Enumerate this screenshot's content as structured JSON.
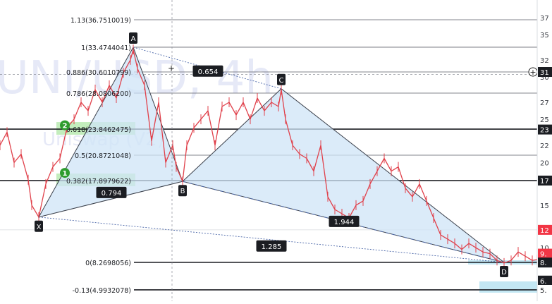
{
  "colors": {
    "background": "#ffffff",
    "candle": "#e0414b",
    "pattern_fill": "#cfe4f7",
    "pattern_stroke": "#3a3f4a",
    "watermark": "#e6e9f7",
    "level_green": "#b9eab1",
    "marker_green": "#2e9c2e",
    "price_red": "#f23645",
    "price_blue": "#bde4f2"
  },
  "watermark": {
    "symbol": "UNI/USD, 4h",
    "exchange": "Uniswap (V2)"
  },
  "pattern_points": [
    {
      "label": "X",
      "bar": 55,
      "price": 13.6
    },
    {
      "label": "A",
      "bar": 189,
      "price": 33.4744041
    },
    {
      "label": "B",
      "bar": 259,
      "price": 17.8
    },
    {
      "label": "C",
      "bar": 399,
      "price": 28.6
    },
    {
      "label": "D",
      "bar": 715,
      "price": 8.2698056
    }
  ],
  "ratios": [
    {
      "text": "0.654",
      "bar": 295,
      "price": 30.7
    },
    {
      "text": "0.794",
      "bar": 158,
      "price": 16.5
    },
    {
      "text": "1.944",
      "bar": 488,
      "price": 13.1
    },
    {
      "text": "1.285",
      "bar": 385,
      "price": 10.2
    }
  ],
  "fib_levels": [
    {
      "label": "1.13(36.7510019)",
      "price": 36.7510019
    },
    {
      "label": "1(33.4744041)",
      "price": 33.4744041
    },
    {
      "label": "0.886(30.6010799)",
      "price": 30.6010799
    },
    {
      "label": "0.786(28.0806200)",
      "price": 28.08062
    },
    {
      "label": "0.618(23.8462475)",
      "price": 23.8462475
    },
    {
      "label": "0.5(20.8721048)",
      "price": 20.8721048
    },
    {
      "label": "0.382(17.8979622)",
      "price": 17.8979622
    },
    {
      "label": "0(8.2698056)",
      "price": 8.2698056
    },
    {
      "label": "-0.13(4.9932078)",
      "price": 4.9932078
    }
  ],
  "markers": [
    {
      "text": "1",
      "price": 18.8
    },
    {
      "text": "2",
      "price": 24.3
    }
  ],
  "price_axis": {
    "ticks": [
      "37",
      "35",
      "32",
      "30",
      "27",
      "25",
      "22",
      "20",
      "15",
      "12",
      "10"
    ],
    "tick_values": [
      37,
      35,
      32,
      30,
      27,
      25,
      22,
      20,
      15,
      12,
      10
    ],
    "tags": [
      {
        "text": "31",
        "price": 30.6,
        "style": "dark"
      },
      {
        "text": "23",
        "price": 23.8,
        "style": "dark"
      },
      {
        "text": "17",
        "price": 17.9,
        "style": "dark"
      },
      {
        "text": "12",
        "price": 12.1,
        "style": "red"
      },
      {
        "text": "9.",
        "price": 9.3,
        "style": "red"
      },
      {
        "text": "8.",
        "price": 8.25,
        "style": "dark"
      },
      {
        "text": "6.",
        "price": 6.1,
        "style": "dark"
      },
      {
        "text": "5.",
        "price": 4.99,
        "style": "white"
      }
    ]
  },
  "chart_data": {
    "type": "line",
    "title": "",
    "xlabel": "",
    "ylabel": "",
    "ylim": [
      4.5,
      38
    ],
    "x": [
      0,
      10,
      20,
      30,
      40,
      45,
      55,
      65,
      75,
      85,
      95,
      105,
      115,
      125,
      135,
      145,
      155,
      165,
      175,
      185,
      189,
      195,
      205,
      215,
      225,
      235,
      245,
      250,
      259,
      265,
      275,
      285,
      295,
      305,
      315,
      325,
      335,
      345,
      355,
      365,
      375,
      385,
      395,
      399,
      405,
      415,
      425,
      435,
      445,
      455,
      465,
      475,
      485,
      495,
      505,
      515,
      525,
      535,
      545,
      555,
      565,
      575,
      585,
      595,
      605,
      615,
      625,
      635,
      645,
      655,
      665,
      675,
      685,
      695,
      705,
      715,
      725,
      735,
      745,
      755,
      762
    ],
    "series": [
      {
        "values": [
          22,
          23.5,
          20,
          21,
          18,
          15,
          13.6,
          17.5,
          19.5,
          20.5,
          24,
          25,
          27,
          26,
          28.5,
          27,
          29,
          27.5,
          30.5,
          32,
          33.2,
          31,
          29,
          22.5,
          27,
          20,
          22,
          19.5,
          17.8,
          22,
          24,
          25,
          26,
          22,
          26.5,
          27,
          25.5,
          27,
          25,
          27.5,
          26,
          27,
          26.5,
          28.5,
          25,
          22,
          21,
          20.5,
          19,
          22,
          16,
          14.5,
          14,
          13.5,
          15,
          15.5,
          17.5,
          19,
          20.5,
          19,
          19.5,
          17,
          16,
          17.5,
          15.5,
          13.5,
          11.5,
          11,
          10.5,
          9.8,
          10.5,
          10,
          9.5,
          9.3,
          8.5,
          8.2,
          8.5,
          9.5,
          9,
          8.5,
          8.6
        ]
      }
    ]
  }
}
